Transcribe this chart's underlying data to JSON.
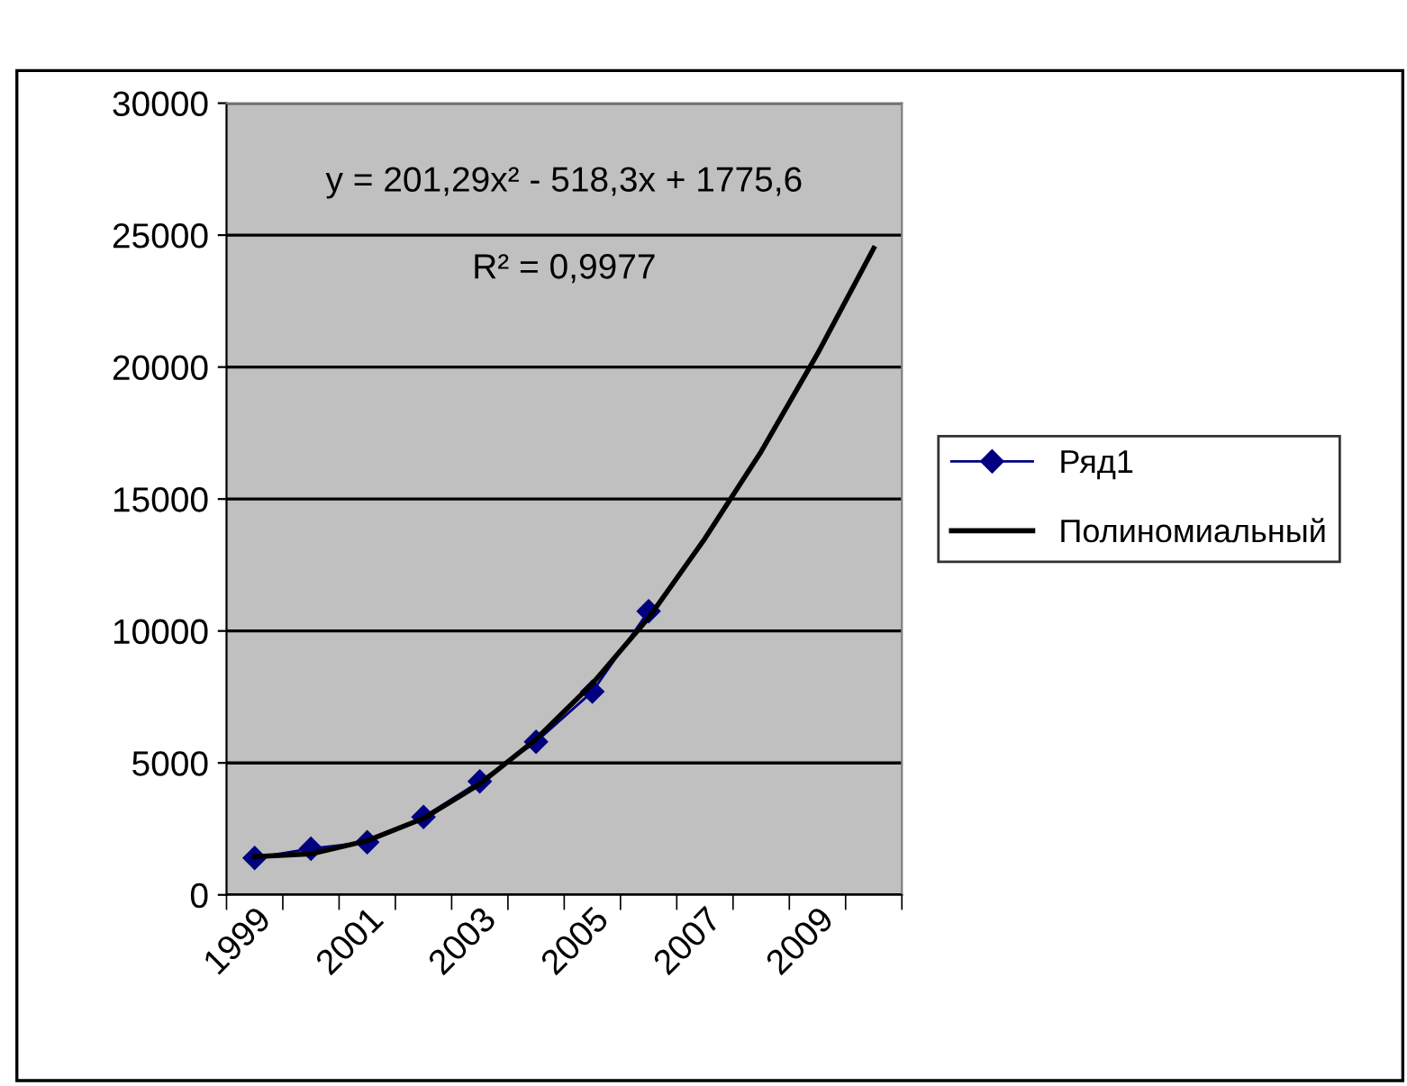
{
  "chart_data": {
    "type": "line",
    "categories": [
      "1999",
      null,
      "2001",
      null,
      "2003",
      null,
      "2005",
      null,
      "2007",
      null,
      "2009",
      null
    ],
    "series": [
      {
        "name": "Ряд1",
        "color": "#000080",
        "marker": "diamond",
        "values": [
          1400,
          1750,
          2000,
          2950,
          4300,
          5800,
          7700,
          10750,
          null,
          null,
          null,
          null
        ]
      },
      {
        "name": "Полиномиальный",
        "color": "#000000",
        "marker": "none",
        "values": [
          1450,
          1550,
          2050,
          2900,
          4200,
          5900,
          8000,
          10500,
          13500,
          16800,
          20500,
          24500
        ]
      }
    ],
    "ylim": [
      0,
      30000
    ],
    "yticks": [
      0,
      5000,
      10000,
      15000,
      20000,
      25000,
      30000
    ],
    "grid": "y",
    "legend": "right",
    "annotations": [
      "y = 201,29x² - 518,3x + 1775,6",
      "R² = 0,9977"
    ]
  }
}
